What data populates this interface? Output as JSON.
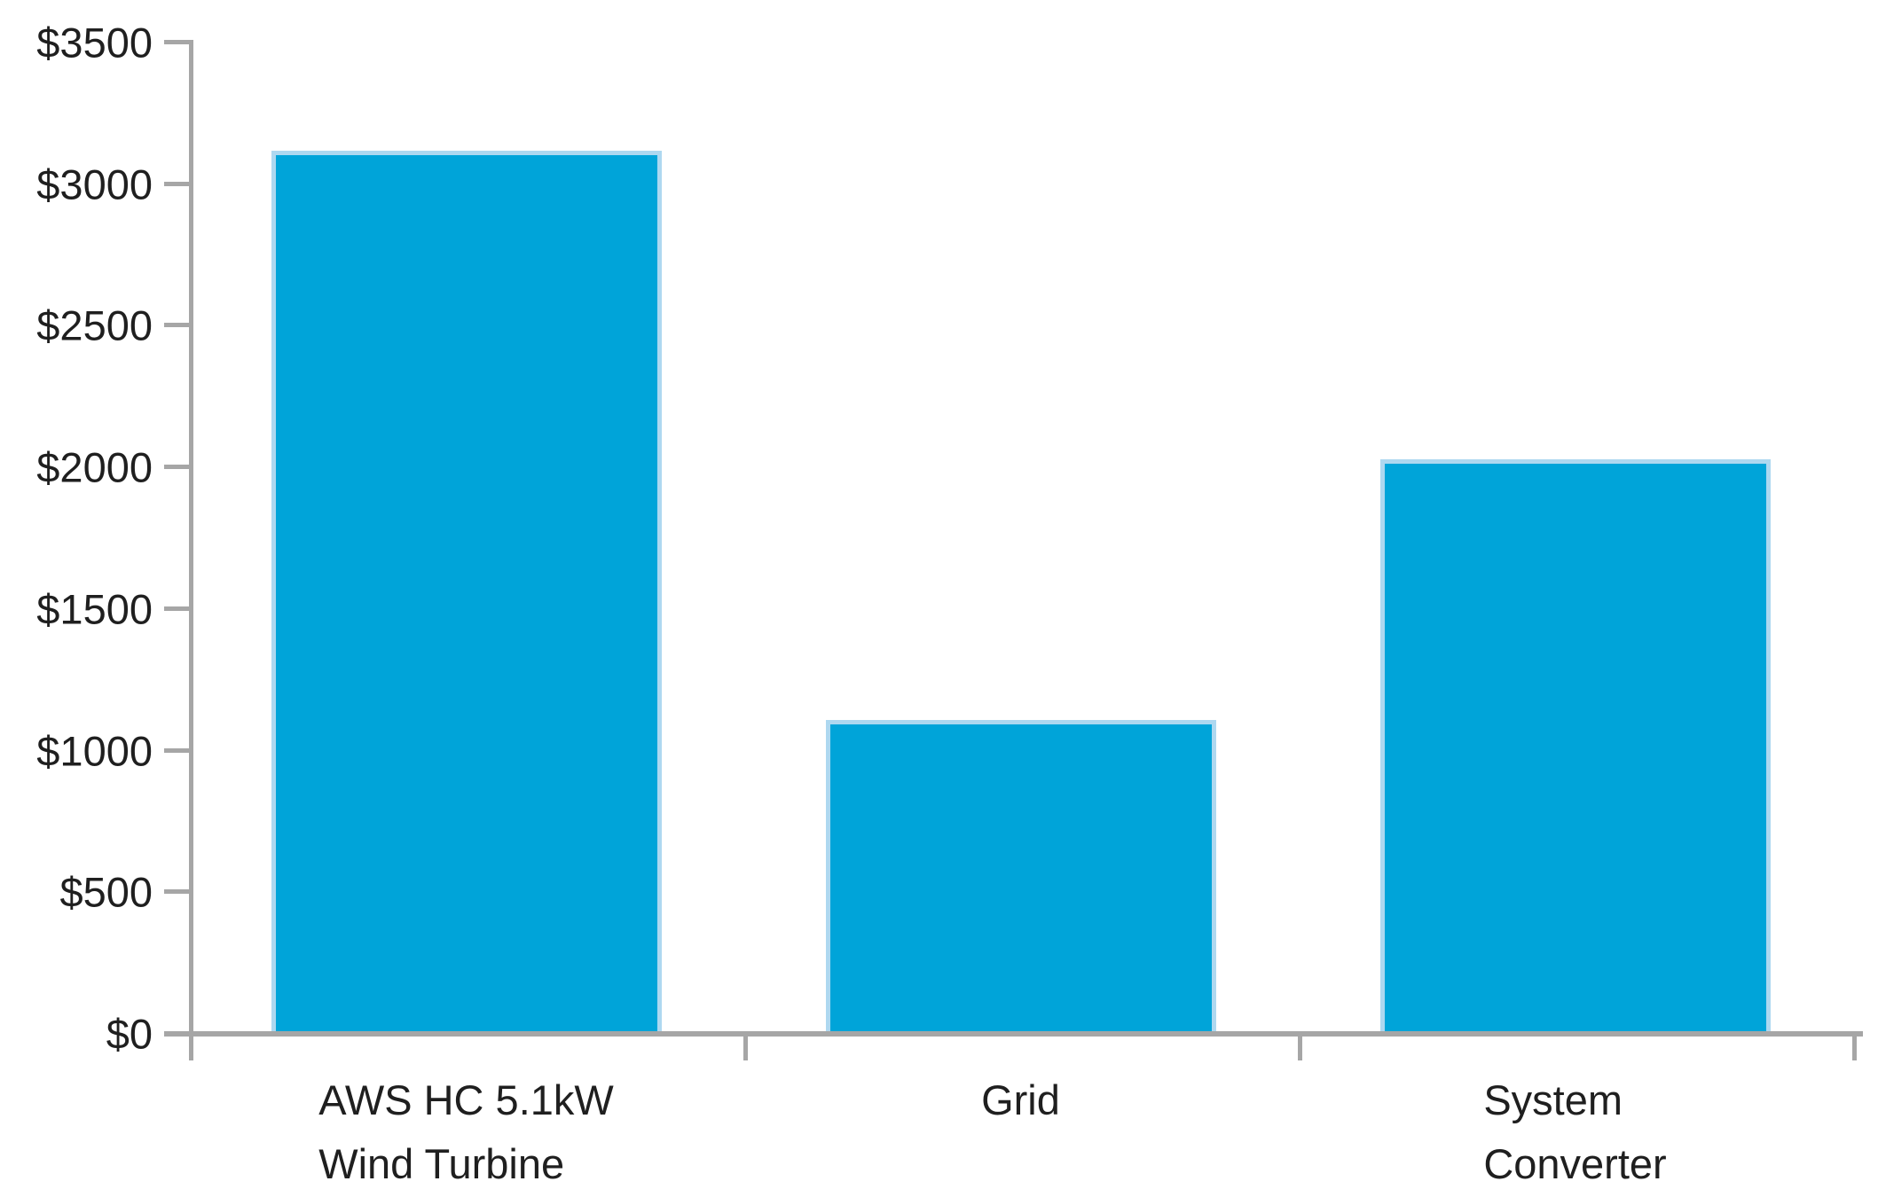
{
  "chart_data": {
    "type": "bar",
    "title": "",
    "xlabel": "",
    "ylabel": "",
    "categories": [
      "AWS HC 5.1kW\nWind Turbine",
      "Grid",
      "System\nConverter"
    ],
    "values": [
      3110,
      1100,
      2020
    ],
    "value_format": "USD",
    "ylim": [
      0,
      3500
    ],
    "ytick_step": 500,
    "ytick_values": [
      0,
      500,
      1000,
      1500,
      2000,
      2500,
      3000,
      3500
    ],
    "ytick_labels": [
      "$0",
      "$500",
      "$1000",
      "$1500",
      "$2000",
      "$2500",
      "$3000",
      "$3500"
    ],
    "grid": "off",
    "legend": "none",
    "colors": {
      "bar_fill": "#00a4d9",
      "bar_border": "#aed8f0",
      "axis": "#a6a6a6",
      "text": "#1f1f1f"
    }
  }
}
